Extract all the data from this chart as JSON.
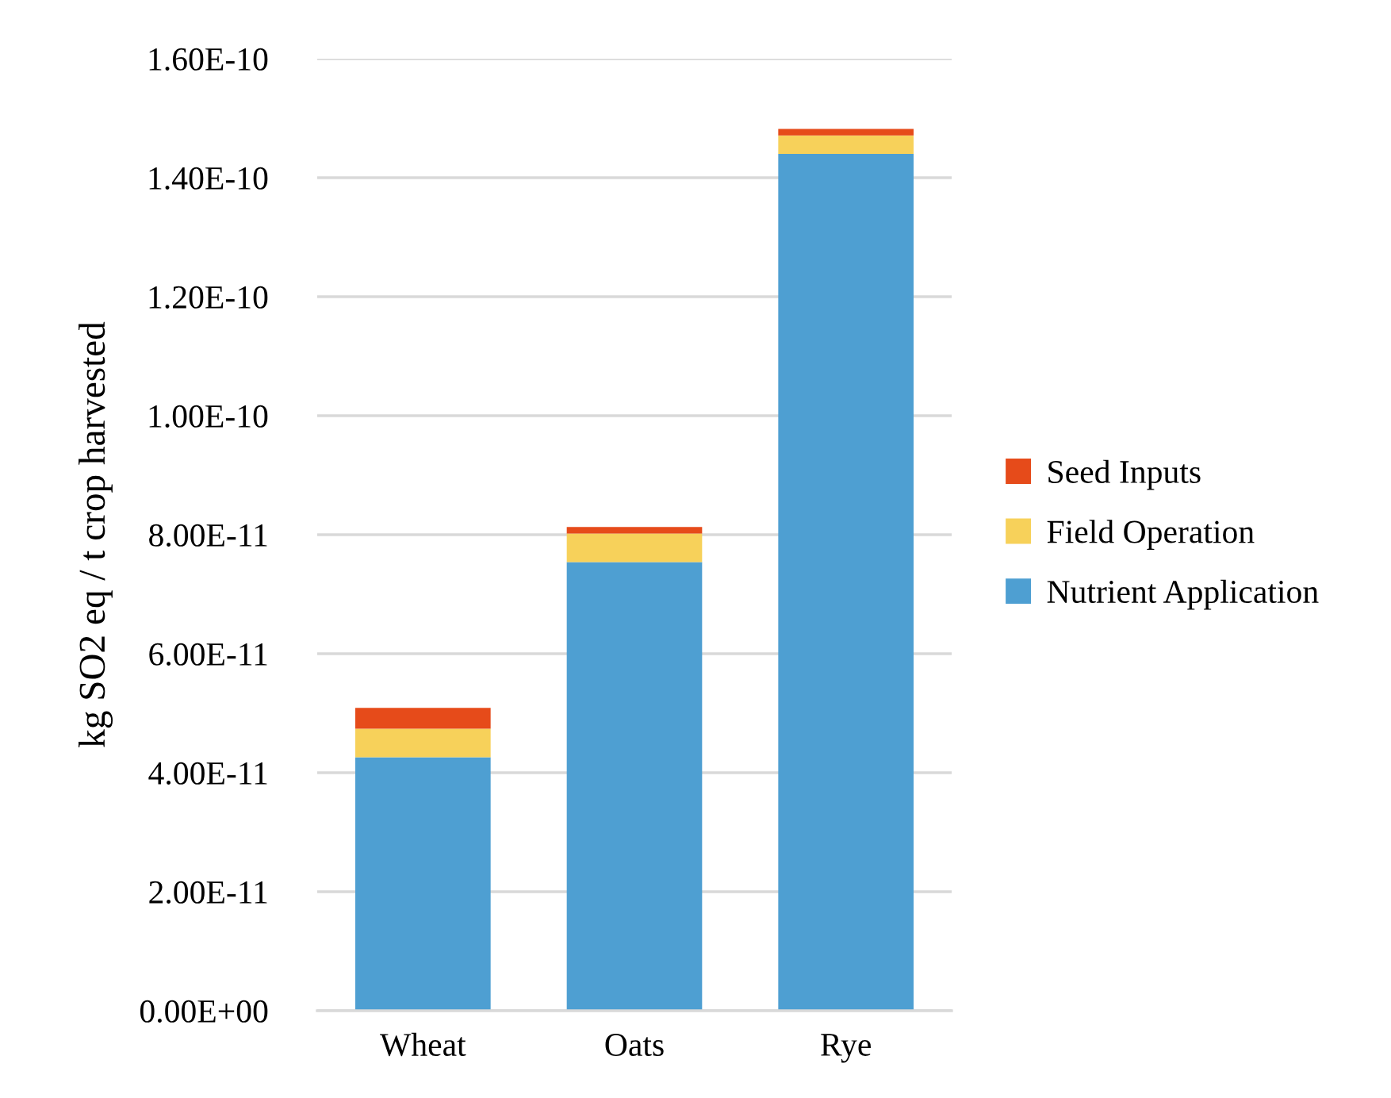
{
  "chart_data": {
    "type": "bar",
    "stacked": true,
    "ylabel": "kg SO2 eq / t crop harvested",
    "categories": [
      "Wheat",
      "Oats",
      "Rye"
    ],
    "series": [
      {
        "name": "Nutrient Application",
        "color": "#4e9fd2",
        "values": [
          4.26e-11,
          7.54e-11,
          1.44e-10
        ]
      },
      {
        "name": "Field Operation",
        "color": "#f7d15a",
        "values": [
          4.8e-12,
          4.8e-12,
          3.1e-12
        ]
      },
      {
        "name": "Seed Inputs",
        "color": "#e64b1a",
        "values": [
          3.5e-12,
          1.1e-12,
          1.1e-12
        ]
      }
    ],
    "ylim": [
      0,
      1.6e-10
    ],
    "yticks": [
      {
        "value": 0,
        "label": "0.00E+00"
      },
      {
        "value": 2e-11,
        "label": "2.00E-11"
      },
      {
        "value": 4e-11,
        "label": "4.00E-11"
      },
      {
        "value": 6e-11,
        "label": "6.00E-11"
      },
      {
        "value": 8e-11,
        "label": "8.00E-11"
      },
      {
        "value": 1e-10,
        "label": "1.00E-10"
      },
      {
        "value": 1.2e-10,
        "label": "1.20E-10"
      },
      {
        "value": 1.4e-10,
        "label": "1.40E-10"
      },
      {
        "value": 1.6e-10,
        "label": "1.60E-10"
      }
    ],
    "grid": "y",
    "legend": "right"
  }
}
